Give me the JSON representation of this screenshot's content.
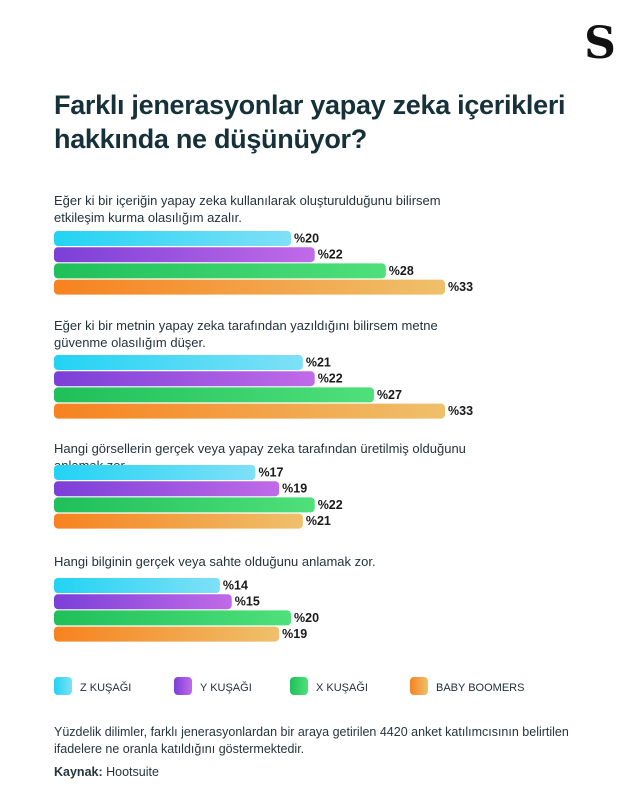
{
  "brand": {
    "logo_text": "S"
  },
  "header": {
    "title": "Farklı jenerasyonlar yapay zeka içerikleri hakkında ne düşünüyor?"
  },
  "colors": {
    "z": [
      "#22d3f4",
      "#7fe0f6"
    ],
    "y": [
      "#7b3fd8",
      "#c06be8"
    ],
    "x": [
      "#1fbf5a",
      "#4fe07a"
    ],
    "bb": [
      "#f7821f",
      "#efc06b"
    ]
  },
  "chart_data": [
    {
      "type": "bar",
      "question": "Eğer ki bir içeriğin yapay zeka kullanılarak oluşturulduğunu bilirsem etkileşim kurma olasılığım azalır.",
      "series": [
        {
          "name": "Z KUŞAĞI",
          "key": "z",
          "value": 20,
          "label": "%20"
        },
        {
          "name": "Y KUŞAĞI",
          "key": "y",
          "value": 22,
          "label": "%22"
        },
        {
          "name": "X KUŞAĞI",
          "key": "x",
          "value": 28,
          "label": "%28"
        },
        {
          "name": "BABY BOOMERS",
          "key": "bb",
          "value": 33,
          "label": "%33"
        }
      ]
    },
    {
      "type": "bar",
      "question": "Eğer ki bir metnin yapay zeka tarafından yazıldığını bilirsem metne güvenme olasılığım düşer.",
      "series": [
        {
          "name": "Z KUŞAĞI",
          "key": "z",
          "value": 21,
          "label": "%21"
        },
        {
          "name": "Y KUŞAĞI",
          "key": "y",
          "value": 22,
          "label": "%22"
        },
        {
          "name": "X KUŞAĞI",
          "key": "x",
          "value": 27,
          "label": "%27"
        },
        {
          "name": "BABY BOOMERS",
          "key": "bb",
          "value": 33,
          "label": "%33"
        }
      ]
    },
    {
      "type": "bar",
      "question": "Hangi görsellerin gerçek veya yapay zeka tarafından üretilmiş olduğunu anlamak zor.",
      "series": [
        {
          "name": "Z KUŞAĞI",
          "key": "z",
          "value": 17,
          "label": "%17"
        },
        {
          "name": "Y KUŞAĞI",
          "key": "y",
          "value": 19,
          "label": "%19"
        },
        {
          "name": "X KUŞAĞI",
          "key": "x",
          "value": 22,
          "label": "%22"
        },
        {
          "name": "BABY BOOMERS",
          "key": "bb",
          "value": 21,
          "label": "%21"
        }
      ]
    },
    {
      "type": "bar",
      "question": "Hangi bilginin gerçek veya sahte olduğunu anlamak zor.",
      "series": [
        {
          "name": "Z KUŞAĞI",
          "key": "z",
          "value": 14,
          "label": "%14"
        },
        {
          "name": "Y KUŞAĞI",
          "key": "y",
          "value": 15,
          "label": "%15"
        },
        {
          "name": "X KUŞAĞI",
          "key": "x",
          "value": 20,
          "label": "%20"
        },
        {
          "name": "BABY BOOMERS",
          "key": "bb",
          "value": 19,
          "label": "%19"
        }
      ]
    }
  ],
  "legend": [
    {
      "key": "z",
      "label": "Z KUŞAĞI"
    },
    {
      "key": "y",
      "label": "Y KUŞAĞI"
    },
    {
      "key": "x",
      "label": "X KUŞAĞI"
    },
    {
      "key": "bb",
      "label": "BABY BOOMERS"
    }
  ],
  "footer": {
    "note": "Yüzdelik dilimler, farklı jenerasyonlardan bir araya getirilen 4420 anket katılımcısının belirtilen ifadelere ne oranla katıldığını göstermektedir.",
    "source_label": "Kaynak:",
    "source_value": "Hootsuite"
  }
}
